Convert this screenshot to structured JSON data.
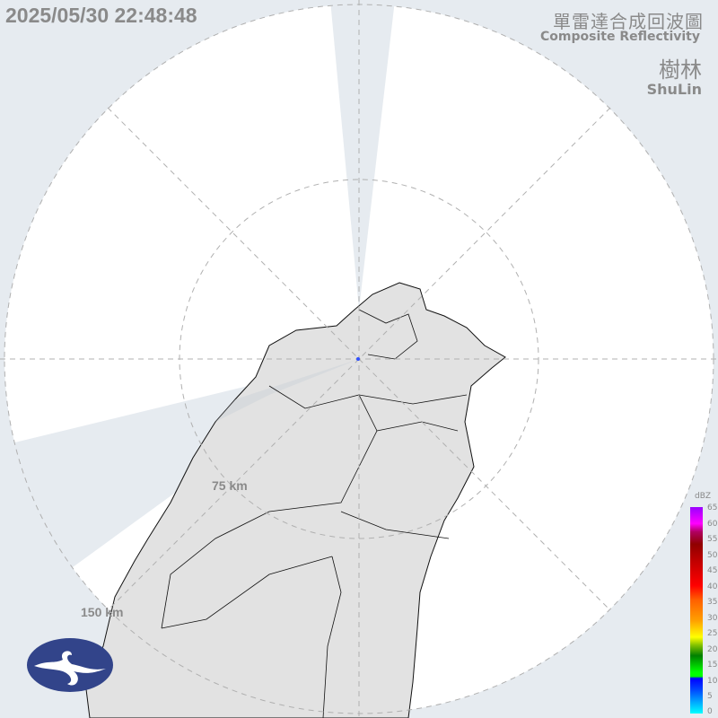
{
  "header": {
    "timestamp": "2025/05/30 22:48:48",
    "title_zh": "單雷達合成回波圖",
    "title_en": "Composite Reflectivity",
    "site_zh": "樹林",
    "site_en": "ShuLin"
  },
  "range_rings": [
    "75 km",
    "150 km"
  ],
  "legend": {
    "unit": "dBZ",
    "ticks": [
      "65",
      "60",
      "55",
      "50",
      "45",
      "40",
      "35",
      "30",
      "25",
      "20",
      "15",
      "10",
      "5",
      "0"
    ]
  },
  "colors": {
    "background": "#e6ebf0",
    "coverage": "#ffffff",
    "land": "#e2e2e2",
    "logo": "#32448a"
  },
  "logo": "cwa-logo"
}
